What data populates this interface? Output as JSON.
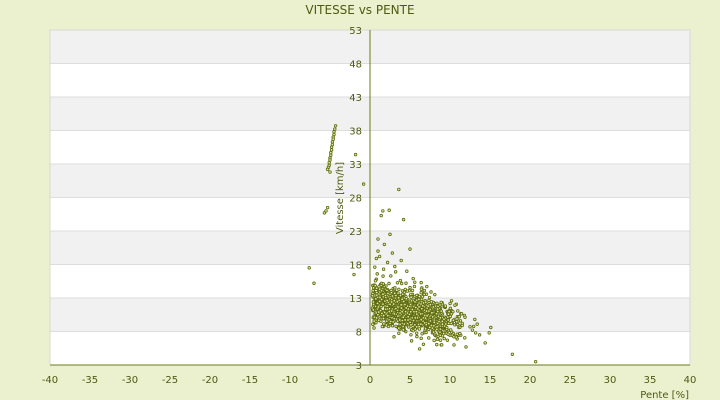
{
  "chart_data": {
    "type": "scatter",
    "title": "VITESSE vs PENTE",
    "xlabel": "Pente [%]",
    "ylabel": "Vitesse [km/h]",
    "xlim": [
      -40,
      40
    ],
    "ylim": [
      3,
      53
    ],
    "xticks": [
      "-40",
      "-35",
      "-30",
      "-25",
      "-20",
      "-15",
      "-10",
      "-5",
      "0",
      "5",
      "10",
      "15",
      "20",
      "25",
      "30",
      "35",
      "40"
    ],
    "yticks": [
      "3",
      "8",
      "13",
      "18",
      "23",
      "28",
      "33",
      "38",
      "43",
      "48",
      "53"
    ],
    "grid": true,
    "legend": "none",
    "colors": {
      "background": "#ebf0cf",
      "plot_band_light": "#ffffff",
      "plot_band_dark": "#f1f1f1",
      "grid": "#dddddd",
      "axis": "#6b7a1c",
      "point_fill": "#e6eb9a",
      "point_stroke": "#5c6a12",
      "text": "#4f5a10"
    },
    "series": [
      {
        "name": "",
        "points": [
          [
            -4.3,
            38.7
          ],
          [
            -4.4,
            38.2
          ],
          [
            -4.5,
            37.8
          ],
          [
            -4.5,
            37.4
          ],
          [
            -4.6,
            37.0
          ],
          [
            -4.6,
            36.7
          ],
          [
            -4.7,
            36.3
          ],
          [
            -4.7,
            35.9
          ],
          [
            -4.8,
            35.5
          ],
          [
            -4.8,
            35.1
          ],
          [
            -4.9,
            34.7
          ],
          [
            -4.9,
            34.3
          ],
          [
            -5.0,
            33.9
          ],
          [
            -5.0,
            33.6
          ],
          [
            -5.1,
            33.2
          ],
          [
            -5.1,
            32.8
          ],
          [
            -5.2,
            32.5
          ],
          [
            -5.3,
            32.2
          ],
          [
            -5.0,
            31.8
          ],
          [
            -1.8,
            34.4
          ],
          [
            -0.8,
            30.0
          ],
          [
            -5.3,
            26.5
          ],
          [
            -5.7,
            25.7
          ],
          [
            -5.5,
            26.0
          ],
          [
            -7.6,
            17.5
          ],
          [
            -7.0,
            15.2
          ],
          [
            -2.0,
            16.5
          ],
          [
            3.6,
            29.2
          ],
          [
            1.6,
            26.0
          ],
          [
            1.4,
            25.3
          ],
          [
            2.4,
            26.1
          ],
          [
            4.2,
            24.7
          ],
          [
            2.5,
            22.5
          ],
          [
            1.0,
            21.8
          ],
          [
            1.8,
            21.0
          ],
          [
            5.0,
            20.3
          ],
          [
            2.8,
            19.7
          ],
          [
            1.2,
            19.2
          ],
          [
            0.8,
            18.9
          ],
          [
            2.2,
            18.3
          ],
          [
            3.1,
            17.7
          ],
          [
            1.7,
            17.3
          ],
          [
            4.6,
            17.0
          ],
          [
            0.9,
            16.6
          ],
          [
            2.6,
            16.3
          ],
          [
            5.4,
            15.9
          ],
          [
            3.8,
            15.6
          ],
          [
            6.4,
            15.3
          ],
          [
            1.3,
            15.0
          ],
          [
            7.1,
            14.7
          ],
          [
            2.9,
            14.4
          ],
          [
            4.9,
            14.1
          ],
          [
            0.7,
            13.8
          ],
          [
            8.1,
            13.5
          ],
          [
            3.3,
            13.2
          ],
          [
            6.0,
            12.9
          ],
          [
            1.9,
            12.6
          ],
          [
            9.0,
            12.3
          ],
          [
            4.4,
            12.0
          ],
          [
            2.1,
            11.7
          ],
          [
            7.4,
            11.4
          ],
          [
            10.2,
            11.1
          ],
          [
            5.6,
            10.8
          ],
          [
            0.9,
            10.5
          ],
          [
            3.5,
            10.2
          ],
          [
            8.6,
            9.9
          ],
          [
            11.3,
            9.6
          ],
          [
            6.7,
            9.3
          ],
          [
            2.4,
            9.0
          ],
          [
            12.5,
            8.7
          ],
          [
            4.1,
            8.4
          ],
          [
            9.7,
            8.1
          ],
          [
            7.8,
            7.8
          ],
          [
            13.7,
            7.5
          ],
          [
            3.0,
            7.2
          ],
          [
            10.9,
            6.9
          ],
          [
            5.2,
            6.6
          ],
          [
            14.4,
            6.3
          ],
          [
            8.9,
            6.0
          ],
          [
            12.0,
            5.7
          ],
          [
            6.2,
            5.4
          ],
          [
            17.8,
            4.6
          ],
          [
            20.7,
            3.5
          ],
          [
            15.1,
            8.6
          ],
          [
            13.1,
            9.8
          ],
          [
            11.8,
            10.4
          ],
          [
            14.9,
            7.8
          ],
          [
            1.0,
            20.0
          ],
          [
            0.6,
            17.6
          ],
          [
            3.9,
            18.6
          ],
          [
            6.6,
            13.7
          ],
          [
            9.4,
            11.6
          ],
          [
            10.6,
            9.0
          ],
          [
            2.0,
            14.8
          ],
          [
            4.7,
            9.6
          ],
          [
            7.0,
            8.9
          ],
          [
            5.9,
            11.9
          ],
          [
            8.2,
            10.7
          ],
          [
            0.5,
            12.2
          ],
          [
            1.5,
            11.0
          ],
          [
            3.2,
            16.9
          ],
          [
            4.0,
            13.4
          ],
          [
            6.9,
            12.6
          ],
          [
            9.9,
            10.1
          ],
          [
            12.8,
            8.2
          ],
          [
            2.7,
            10.6
          ],
          [
            5.0,
            12.5
          ],
          [
            7.6,
            9.7
          ],
          [
            1.1,
            14.2
          ],
          [
            3.6,
            11.5
          ],
          [
            6.3,
            10.3
          ],
          [
            8.8,
            11.2
          ],
          [
            11.1,
            8.6
          ],
          [
            0.8,
            15.8
          ],
          [
            2.3,
            12.9
          ],
          [
            4.5,
            15.2
          ],
          [
            6.8,
            14.1
          ],
          [
            9.2,
            9.4
          ],
          [
            13.4,
            9.1
          ]
        ]
      }
    ],
    "dense_cluster": {
      "center": [
        5.0,
        11.2
      ],
      "count": 1000,
      "x_range": [
        0.3,
        14.0
      ],
      "y_range": [
        6.0,
        19.5
      ]
    }
  }
}
